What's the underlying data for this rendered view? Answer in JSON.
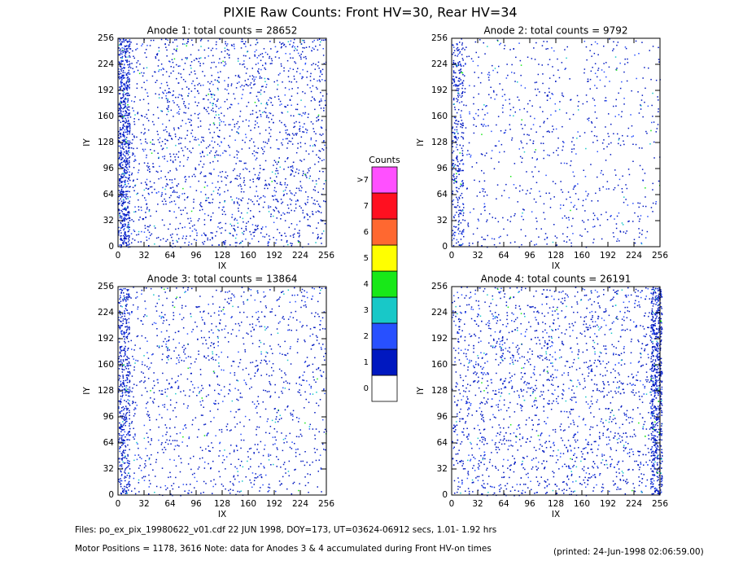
{
  "title": "PIXIE Raw Counts:  Front HV=30, Rear HV=34",
  "chart_data": [
    {
      "type": "heatmap",
      "title": "Anode 1: total counts = 28652",
      "x_label": "IX",
      "y_label": "IY",
      "xlim": [
        0,
        256
      ],
      "ylim": [
        0,
        256
      ],
      "xticks": [
        0,
        32,
        64,
        96,
        128,
        160,
        192,
        224,
        256
      ],
      "yticks": [
        0,
        32,
        64,
        96,
        128,
        160,
        192,
        224,
        256
      ]
    },
    {
      "type": "heatmap",
      "title": "Anode 2: total counts = 9792",
      "x_label": "IX",
      "y_label": "IY",
      "xlim": [
        0,
        256
      ],
      "ylim": [
        0,
        256
      ],
      "xticks": [
        0,
        32,
        64,
        96,
        128,
        160,
        192,
        224,
        256
      ],
      "yticks": [
        0,
        32,
        64,
        96,
        128,
        160,
        192,
        224,
        256
      ]
    },
    {
      "type": "heatmap",
      "title": "Anode 3: total counts = 13864",
      "x_label": "IX",
      "y_label": "IY",
      "xlim": [
        0,
        256
      ],
      "ylim": [
        0,
        256
      ],
      "xticks": [
        0,
        32,
        64,
        96,
        128,
        160,
        192,
        224,
        256
      ],
      "yticks": [
        0,
        32,
        64,
        96,
        128,
        160,
        192,
        224,
        256
      ]
    },
    {
      "type": "heatmap",
      "title": "Anode 4: total counts = 26191",
      "x_label": "IX",
      "y_label": "IY",
      "xlim": [
        0,
        256
      ],
      "ylim": [
        0,
        256
      ],
      "xticks": [
        0,
        32,
        64,
        96,
        128,
        160,
        192,
        224,
        256
      ],
      "yticks": [
        0,
        32,
        64,
        96,
        128,
        160,
        192,
        224,
        256
      ]
    }
  ],
  "colorbar": {
    "title": "Counts",
    "levels": [
      {
        "label": "0",
        "color": "#ffffff"
      },
      {
        "label": "1",
        "color": "#0018c0"
      },
      {
        "label": "2",
        "color": "#2850ff"
      },
      {
        "label": "3",
        "color": "#18c8c8"
      },
      {
        "label": "4",
        "color": "#18e818"
      },
      {
        "label": "5",
        "color": "#ffff00"
      },
      {
        "label": "6",
        "color": "#ff6830"
      },
      {
        "label": "7",
        "color": "#ff1020"
      },
      {
        "label": ">7",
        "color": "#ff50ff"
      }
    ]
  },
  "footer": {
    "line1": "Files: po_ex_pix_19980622_v01.cdf    22 JUN 1998, DOY=173, UT=03624-06912 secs,  1.01- 1.92 hrs",
    "line2": "Motor Positions = 1178, 3616   Note: data for Anodes 3 & 4 accumulated during Front HV-on times",
    "printed": "(printed: 24-Jun-1998 02:06:59.00)"
  }
}
